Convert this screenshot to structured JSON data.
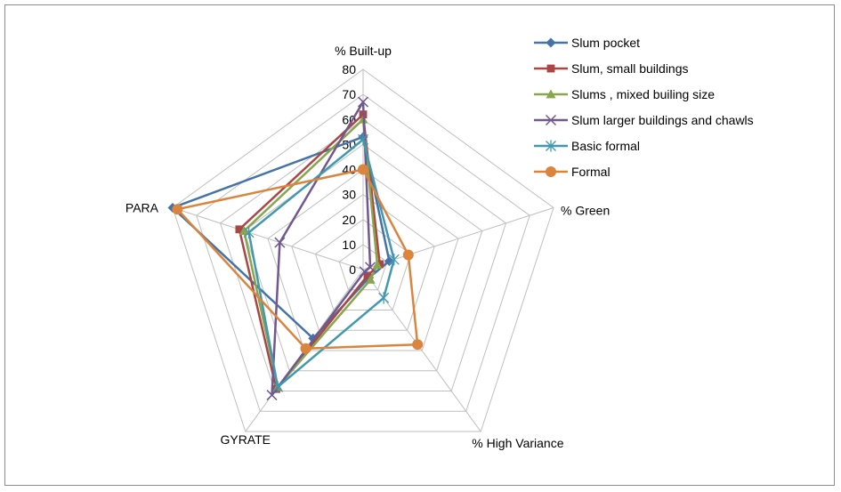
{
  "chart_data": {
    "type": "radar",
    "axes": [
      "% Built-up",
      "% Green",
      "% High Variance",
      "GYRATE",
      "PARA"
    ],
    "rlim": [
      0,
      80
    ],
    "ticks": [
      0,
      10,
      20,
      30,
      40,
      50,
      60,
      70,
      80
    ],
    "tick_labels": [
      "0",
      "10",
      "20",
      "30",
      "40",
      "50",
      "60",
      "70",
      "80"
    ],
    "grid": true,
    "legend_position": "top-right",
    "series": [
      {
        "name": "Slum pocket",
        "color": "#4572A7",
        "marker": "diamond",
        "values": [
          53,
          11,
          4,
          34,
          80
        ]
      },
      {
        "name": "Slum,  small buildings",
        "color": "#AA4643",
        "marker": "square",
        "values": [
          62,
          7,
          3,
          59,
          52
        ]
      },
      {
        "name": "Slums , mixed builing size",
        "color": "#89A54E",
        "marker": "triangle",
        "values": [
          60,
          6,
          5,
          58,
          50
        ]
      },
      {
        "name": "Slum  larger buildings and chawls",
        "color": "#71588F",
        "marker": "x",
        "values": [
          67,
          3,
          1,
          62,
          35
        ]
      },
      {
        "name": "Basic formal",
        "color": "#4198AF",
        "marker": "asterisk",
        "values": [
          52,
          13,
          14,
          58,
          48
        ]
      },
      {
        "name": "Formal",
        "color": "#DB843D",
        "marker": "circle",
        "values": [
          40,
          19,
          37,
          39,
          78
        ]
      }
    ]
  }
}
